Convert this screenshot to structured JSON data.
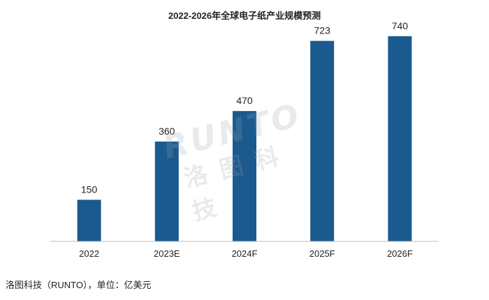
{
  "chart_data": {
    "type": "bar",
    "title": "2022-2026年全球电子纸产业规模预测",
    "categories": [
      "2022",
      "2023E",
      "2024F",
      "2025F",
      "2026F"
    ],
    "values": [
      150,
      360,
      470,
      723,
      740
    ],
    "ylim": [
      0,
      800
    ],
    "grid": false,
    "legend": "none",
    "bar_color": "#1b5a8e",
    "axis_color": "#bfbfbf"
  },
  "watermark": {
    "latin": "RUNTO",
    "cjk": "洛图科技"
  },
  "source_note": "洛图科技（RUNTO），单位：亿美元"
}
